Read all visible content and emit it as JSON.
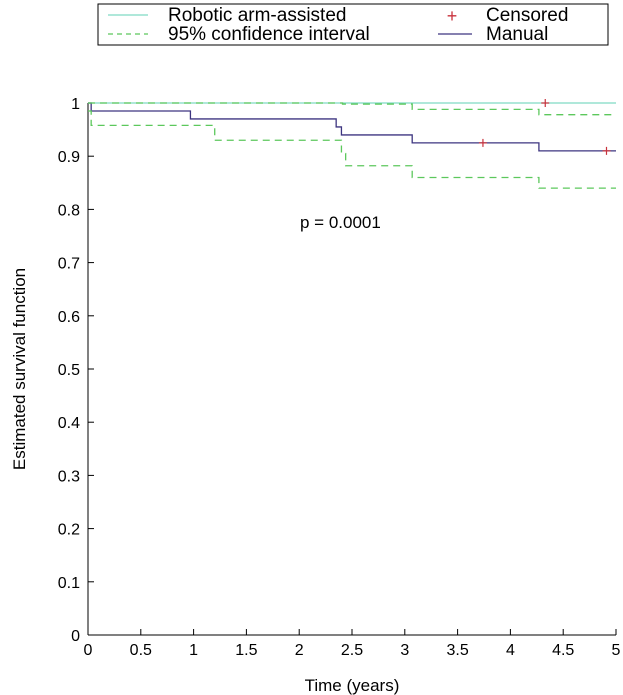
{
  "chart_data": {
    "type": "line",
    "subtype": "kaplan-meier step",
    "xlabel": "Time (years)",
    "ylabel": "Estimated survival function",
    "xlim": [
      0,
      5
    ],
    "ylim": [
      0,
      1
    ],
    "x_ticks": [
      "0",
      "0.5",
      "1",
      "1.5",
      "2",
      "2.5",
      "3",
      "3.5",
      "4",
      "4.5",
      "5"
    ],
    "y_ticks": [
      "0",
      "0.1",
      "0.2",
      "0.3",
      "0.4",
      "0.5",
      "0.6",
      "0.7",
      "0.8",
      "0.9",
      "1"
    ],
    "grid": false,
    "legend_position": "top",
    "annotation": "p = 0.0001",
    "legend": [
      {
        "label": "Robotic arm-assisted",
        "style": "solid",
        "color": "#7fd9c4"
      },
      {
        "label": "Censored",
        "style": "marker",
        "color": "#c8323c"
      },
      {
        "label": "95% confidence interval",
        "style": "dashed",
        "color": "#5cc85c"
      },
      {
        "label": "Manual",
        "style": "solid",
        "color": "#3d3580"
      }
    ],
    "series": [
      {
        "name": "Robotic arm-assisted",
        "color": "#7fd9c4",
        "style": "solid",
        "steps": [
          [
            0,
            1.0
          ],
          [
            5,
            1.0
          ]
        ]
      },
      {
        "name": "Manual",
        "color": "#3d3580",
        "style": "solid",
        "steps": [
          [
            0,
            1.0
          ],
          [
            0.03,
            0.985
          ],
          [
            0.97,
            0.97
          ],
          [
            2.35,
            0.955
          ],
          [
            2.4,
            0.94
          ],
          [
            3.07,
            0.925
          ],
          [
            4.27,
            0.91
          ],
          [
            5,
            0.91
          ]
        ]
      },
      {
        "name": "95% confidence interval",
        "color": "#5cc85c",
        "style": "dashed",
        "steps": [
          [
            0,
            1.0
          ],
          [
            2.41,
            0.998
          ],
          [
            3.07,
            0.988
          ],
          [
            4.27,
            0.978
          ],
          [
            5,
            0.978
          ]
        ]
      },
      {
        "name": "95% confidence interval",
        "color": "#5cc85c",
        "style": "dashed",
        "steps": [
          [
            0,
            0.985
          ],
          [
            0.03,
            0.958
          ],
          [
            1.2,
            0.93
          ],
          [
            2.4,
            0.905
          ],
          [
            2.44,
            0.882
          ],
          [
            3.07,
            0.86
          ],
          [
            4.27,
            0.84
          ],
          [
            5,
            0.84
          ]
        ]
      }
    ],
    "censored": {
      "name": "Censored",
      "color": "#c8323c",
      "points": [
        [
          4.33,
          1.0
        ],
        [
          3.74,
          0.925
        ],
        [
          4.91,
          0.91
        ]
      ]
    }
  }
}
